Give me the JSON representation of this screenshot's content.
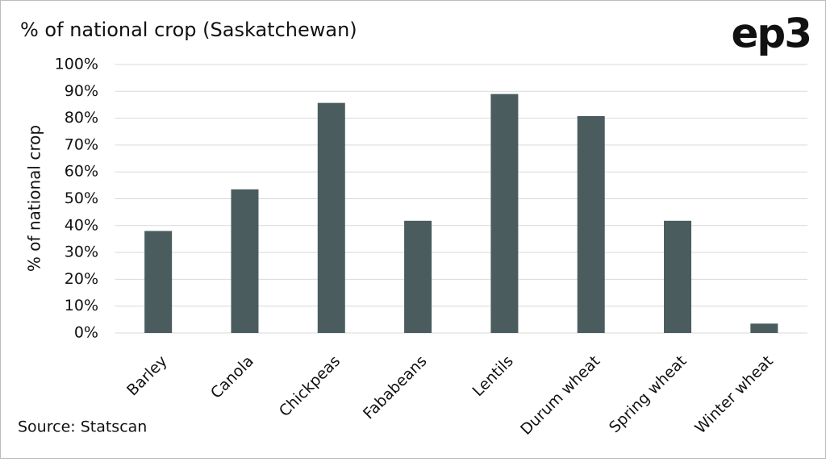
{
  "chart_data": {
    "type": "bar",
    "title": "% of national crop (Saskatchewan)",
    "logo": "ep3",
    "y_label": "% of national crop",
    "source": "Source: Statscan",
    "categories": [
      "Barley",
      "Canola",
      "Chickpeas",
      "Fababeans",
      "Lentils",
      "Durum wheat",
      "Spring wheat",
      "Winter wheat"
    ],
    "values": [
      38,
      53.5,
      85.7,
      41.8,
      89,
      80.8,
      41.8,
      3.5
    ],
    "color": "#4a5c5e",
    "ylim": [
      0,
      100
    ],
    "yticks": [
      {
        "value": 0,
        "label": "0%"
      },
      {
        "value": 10,
        "label": "10%"
      },
      {
        "value": 20,
        "label": "20%"
      },
      {
        "value": 30,
        "label": "30%"
      },
      {
        "value": 40,
        "label": "40%"
      },
      {
        "value": 50,
        "label": "50%"
      },
      {
        "value": 60,
        "label": "60%"
      },
      {
        "value": 70,
        "label": "70%"
      },
      {
        "value": 80,
        "label": "80%"
      },
      {
        "value": 90,
        "label": "90%"
      },
      {
        "value": 100,
        "label": "100%"
      }
    ],
    "grid": true
  }
}
